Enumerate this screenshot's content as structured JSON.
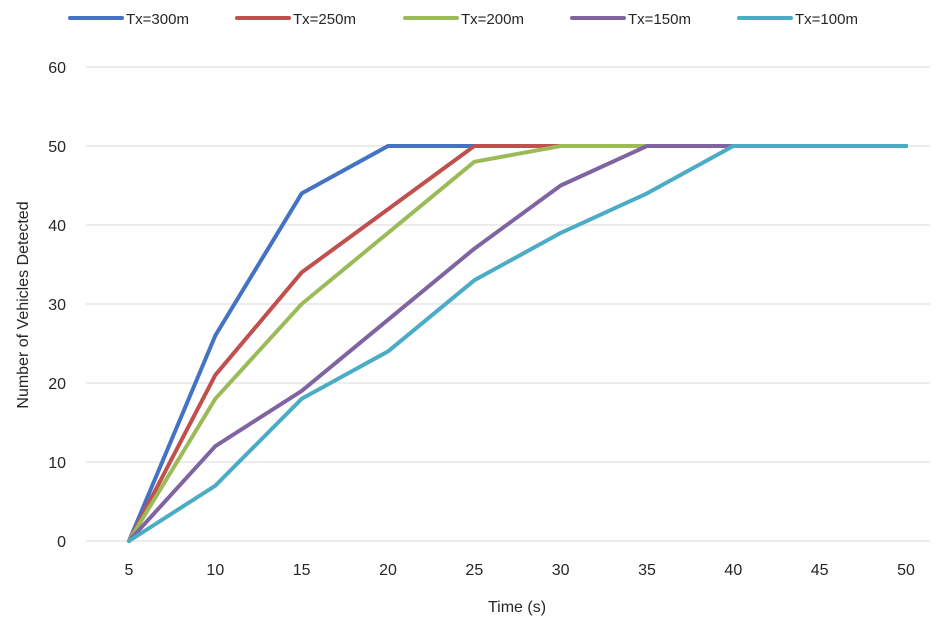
{
  "chart_data": {
    "type": "line",
    "title": "",
    "xlabel": "Time (s)",
    "ylabel": "Number of Vehicles Detected",
    "x": [
      5,
      10,
      15,
      20,
      25,
      30,
      35,
      40,
      45,
      50
    ],
    "x_tick_labels": [
      "5",
      "10",
      "15",
      "20",
      "25",
      "30",
      "35",
      "40",
      "45",
      "50"
    ],
    "y_tick_labels": [
      "0",
      "10",
      "20",
      "30",
      "40",
      "50",
      "60"
    ],
    "ylim": [
      0,
      60
    ],
    "grid": true,
    "legend_position": "top",
    "series": [
      {
        "name": "Tx=300m",
        "color": "#4472c4",
        "values": [
          0,
          26,
          44,
          50,
          50,
          50,
          50,
          50,
          50,
          50
        ]
      },
      {
        "name": "Tx=250m",
        "color": "#c0504d",
        "values": [
          0,
          21,
          34,
          42,
          50,
          50,
          50,
          50,
          50,
          50
        ]
      },
      {
        "name": "Tx=200m",
        "color": "#9bbb59",
        "values": [
          0,
          18,
          30,
          39,
          48,
          50,
          50,
          50,
          50,
          50
        ]
      },
      {
        "name": "Tx=150m",
        "color": "#8064a2",
        "values": [
          0,
          12,
          19,
          28,
          37,
          45,
          50,
          50,
          50,
          50
        ]
      },
      {
        "name": "Tx=100m",
        "color": "#4bacc6",
        "values": [
          0,
          7,
          18,
          24,
          33,
          39,
          44,
          50,
          50,
          50
        ]
      }
    ]
  }
}
